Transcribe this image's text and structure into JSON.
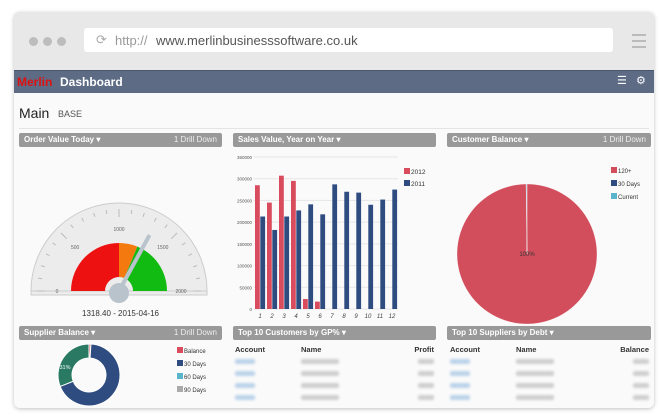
{
  "browser": {
    "url_prefix": "http://",
    "url_domain": "www.merlinbusinesssoftware.co.uk",
    "icons": [
      "reload-icon",
      "menu-icon"
    ]
  },
  "app": {
    "brand": "Merlin",
    "title": "Dashboard",
    "icons": [
      "list-icon",
      "gear-icon"
    ]
  },
  "page": {
    "title": "Main",
    "subtitle": "BASE"
  },
  "panels": {
    "order_value": {
      "title": "Order Value Today ▾",
      "drill": "1 Drill Down",
      "caption": "1318.40 - 2015-04-16"
    },
    "sales": {
      "title": "Sales Value, Year on Year ▾"
    },
    "customer_balance": {
      "title": "Customer Balance ▾",
      "drill": "1 Drill Down"
    },
    "supplier_balance": {
      "title": "Supplier Balance ▾",
      "drill": "1 Drill Down"
    },
    "top_customers": {
      "title": "Top 10 Customers by GP% ▾",
      "columns": [
        "Account",
        "Name",
        "Profit"
      ]
    },
    "top_suppliers": {
      "title": "Top 10 Suppliers by Debt ▾",
      "columns": [
        "Account",
        "Name",
        "Balance"
      ]
    }
  },
  "chart_data": [
    {
      "type": "gauge",
      "min": 0,
      "max": 2000,
      "value": 1318.4,
      "ticks": [
        "0",
        "500",
        "1000",
        "1500",
        "2000"
      ],
      "bands": [
        {
          "from": 0,
          "to": 1000,
          "color": "#ee1111"
        },
        {
          "from": 1000,
          "to": 1250,
          "color": "#f47a10"
        },
        {
          "from": 1250,
          "to": 2000,
          "color": "#11bb11"
        }
      ]
    },
    {
      "type": "bar",
      "categories": [
        "1",
        "2",
        "3",
        "4",
        "5",
        "6",
        "7",
        "8",
        "9",
        "10",
        "11",
        "12"
      ],
      "ylim": [
        0,
        350000
      ],
      "yticks": [
        "0",
        "50000",
        "100000",
        "150000",
        "200000",
        "250000",
        "300000",
        "350000"
      ],
      "legend": "right",
      "series": [
        {
          "name": "2012",
          "color": "#d94c5e",
          "values": [
            285000,
            245000,
            307000,
            295000,
            23000,
            17000,
            null,
            null,
            null,
            null,
            null,
            null
          ]
        },
        {
          "name": "2011",
          "color": "#2e4c80",
          "values": [
            213000,
            182000,
            213000,
            227000,
            241000,
            218000,
            287000,
            270000,
            268000,
            240000,
            252000,
            275000
          ]
        }
      ]
    },
    {
      "type": "pie",
      "legend": "right",
      "slices": [
        {
          "name": "120+",
          "value": 99.8,
          "color": "#d24e5c"
        },
        {
          "name": "30 Days",
          "value": 0.1,
          "color": "#2e4c80"
        },
        {
          "name": "Current",
          "value": 0.1,
          "color": "#5ab5cc"
        }
      ],
      "label": "100%"
    },
    {
      "type": "donut",
      "legend": "right",
      "slices": [
        {
          "name": "Balance",
          "value": 1,
          "color": "#d94c5e"
        },
        {
          "name": "30 Days",
          "value": 68,
          "color": "#2e4c80"
        },
        {
          "name": "60 Days",
          "value": 0,
          "color": "#5ab5cc"
        },
        {
          "name": "90 Days",
          "value": 0,
          "color": "#aaaaaa"
        },
        {
          "name": "",
          "value": 31,
          "color": "#2a7a63"
        }
      ],
      "label": "31%"
    }
  ]
}
